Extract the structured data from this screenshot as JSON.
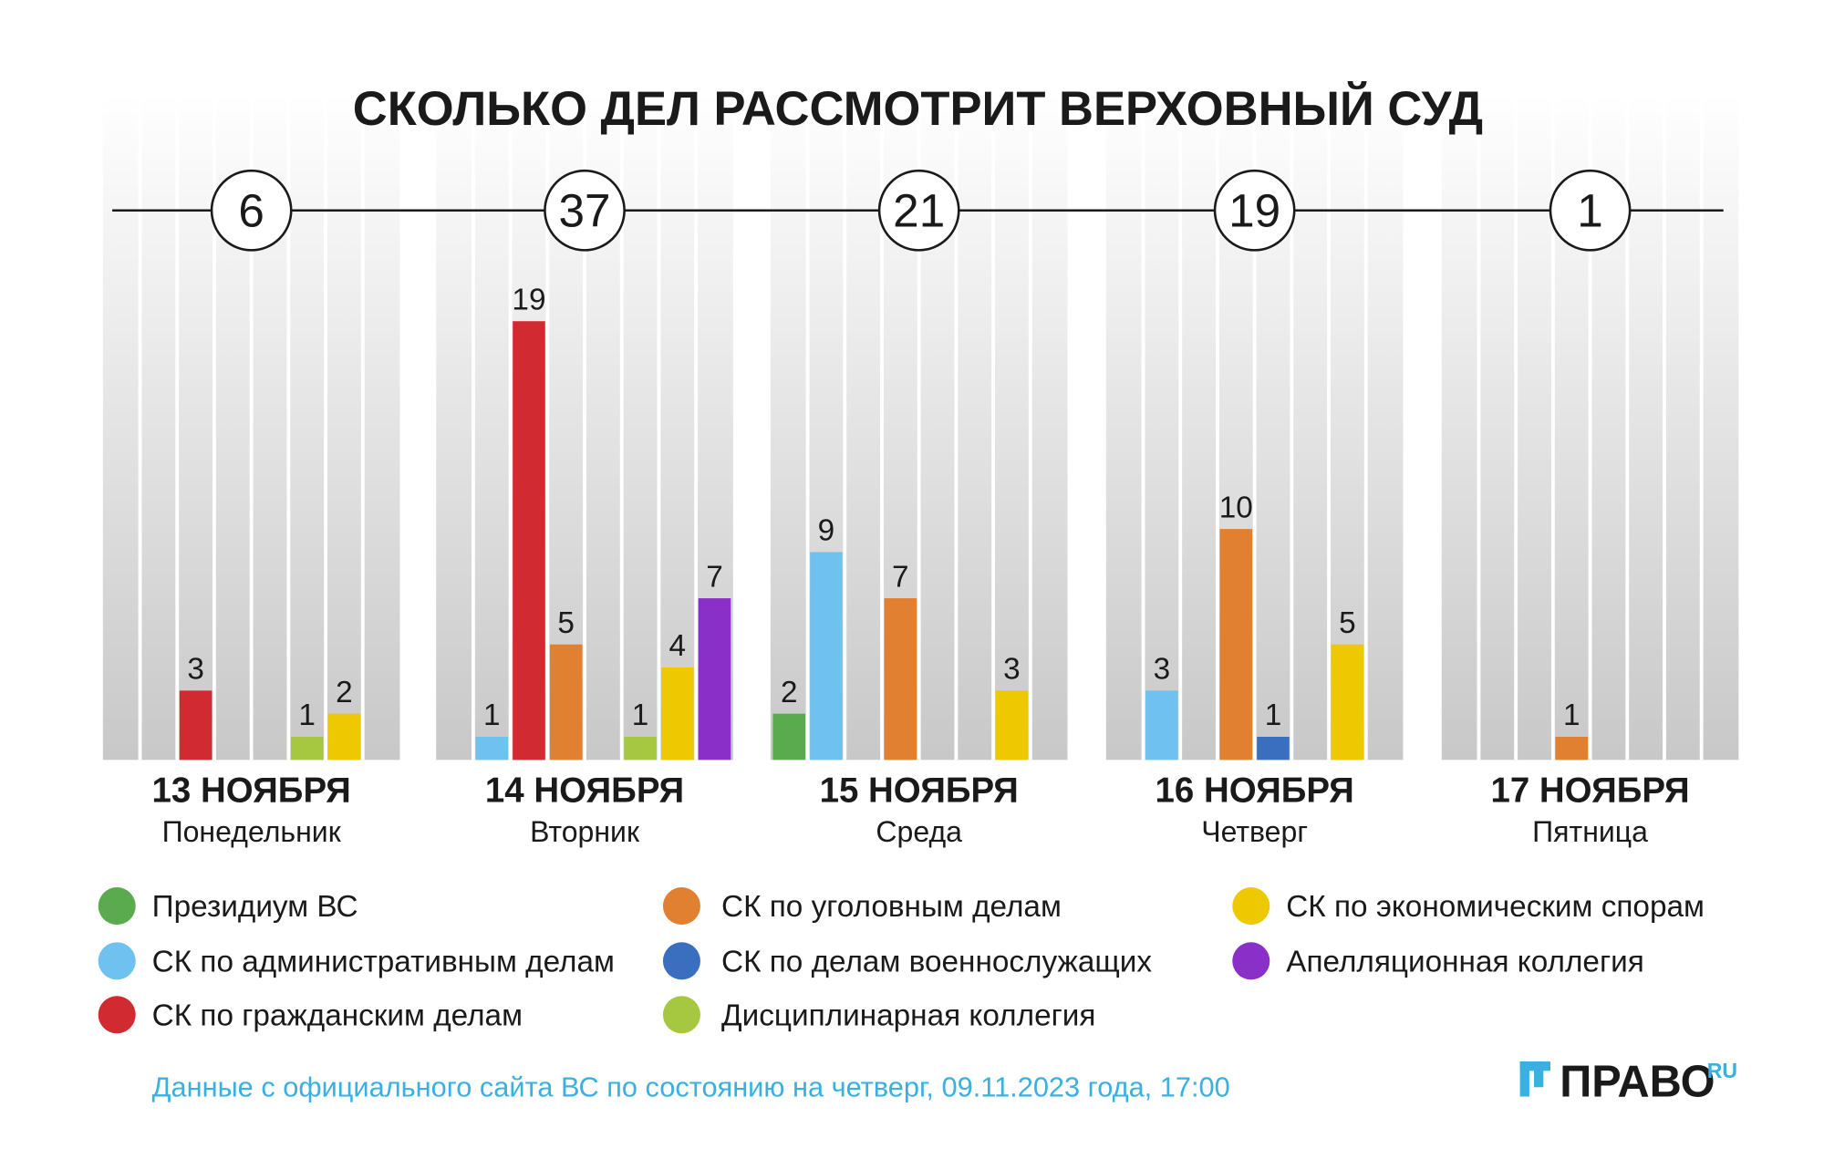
{
  "chart_data": {
    "type": "bar",
    "title": "СКОЛЬКО ДЕЛ РАССМОТРИТ ВЕРХОВНЫЙ СУД",
    "categories": [
      "13 НОЯБРЯ",
      "14 НОЯБРЯ",
      "15 НОЯБРЯ",
      "16 НОЯБРЯ",
      "17 НОЯБРЯ"
    ],
    "weekdays": [
      "Понедельник",
      "Вторник",
      "Среда",
      "Четверг",
      "Пятница"
    ],
    "totals": [
      6,
      37,
      21,
      19,
      1
    ],
    "series": [
      {
        "name": "Президиум ВС",
        "color": "#5aab4e",
        "values": [
          null,
          null,
          2,
          null,
          null
        ]
      },
      {
        "name": "СК по административным делам",
        "color": "#6fc1ef",
        "values": [
          null,
          1,
          9,
          3,
          null
        ]
      },
      {
        "name": "СК по гражданским делам",
        "color": "#d12a30",
        "values": [
          3,
          19,
          null,
          null,
          null
        ]
      },
      {
        "name": "СК по уголовным делам",
        "color": "#e08030",
        "values": [
          null,
          5,
          7,
          10,
          1
        ]
      },
      {
        "name": "СК по делам военнослужащих",
        "color": "#3a6fc0",
        "values": [
          null,
          null,
          null,
          1,
          null
        ]
      },
      {
        "name": "Дисциплинарная коллегия",
        "color": "#a6c840",
        "values": [
          1,
          1,
          null,
          null,
          null
        ]
      },
      {
        "name": "СК по экономическим спорам",
        "color": "#eec800",
        "values": [
          2,
          4,
          3,
          5,
          null
        ]
      },
      {
        "name": "Апелляционная коллегия",
        "color": "#8a30c8",
        "values": [
          null,
          7,
          null,
          null,
          null
        ]
      }
    ],
    "source": "Данные с официального сайта ВС по состоянию на четверг, 09.11.2023 года, 17:00",
    "logo": "ПРАВО",
    "logo_suffix": "RU"
  }
}
